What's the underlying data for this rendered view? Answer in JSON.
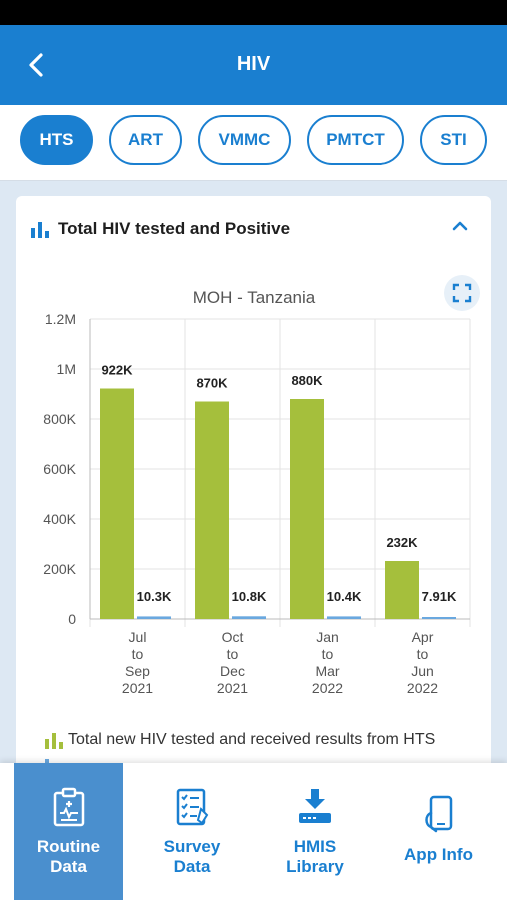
{
  "header": {
    "title": "HIV"
  },
  "tabs": [
    {
      "label": "HTS",
      "active": true
    },
    {
      "label": "ART",
      "active": false
    },
    {
      "label": "VMMC",
      "active": false
    },
    {
      "label": "PMTCT",
      "active": false
    },
    {
      "label": "STI",
      "active": false
    }
  ],
  "card": {
    "title": "Total HIV tested and Positive",
    "legend_1": "Total new HIV tested and received results from HTS"
  },
  "chart_data": {
    "type": "bar",
    "title": "MOH - Tanzania",
    "categories": [
      "Jul to Sep 2021",
      "Oct to Dec 2021",
      "Jan to Mar 2022",
      "Apr to Jun 2022"
    ],
    "category_lines": [
      [
        "Jul",
        "to",
        "Sep",
        "2021"
      ],
      [
        "Oct",
        "to",
        "Dec",
        "2021"
      ],
      [
        "Jan",
        "to",
        "Mar",
        "2022"
      ],
      [
        "Apr",
        "to",
        "Jun",
        "2022"
      ]
    ],
    "series": [
      {
        "name": "Total new HIV tested and received results from HTS",
        "values": [
          922000,
          870000,
          880000,
          232000
        ],
        "labels": [
          "922K",
          "870K",
          "880K",
          "232K"
        ],
        "color": "#a5bf3c"
      },
      {
        "values": [
          10300,
          10800,
          10400,
          7910
        ],
        "labels": [
          "10.3K",
          "10.8K",
          "10.4K",
          "7.91K"
        ],
        "color": "#6aa8df"
      }
    ],
    "yticks": [
      0,
      200000,
      400000,
      600000,
      800000,
      1000000,
      1200000
    ],
    "ytick_labels": [
      "0",
      "200K",
      "400K",
      "600K",
      "800K",
      "1M",
      "1.2M"
    ],
    "ylim": [
      0,
      1200000
    ],
    "grid": true
  },
  "bottom_nav": [
    {
      "label": "Routine\nData",
      "icon": "clipboard-icon",
      "active": true
    },
    {
      "label": "Survey\nData",
      "icon": "checklist-icon",
      "active": false
    },
    {
      "label": "HMIS\nLibrary",
      "icon": "download-icon",
      "active": false
    },
    {
      "label": "App Info",
      "icon": "phone-icon",
      "active": false
    }
  ],
  "colors": {
    "primary": "#1a7fd0",
    "bar_green": "#a5bf3c",
    "bar_blue": "#6aa8df"
  }
}
